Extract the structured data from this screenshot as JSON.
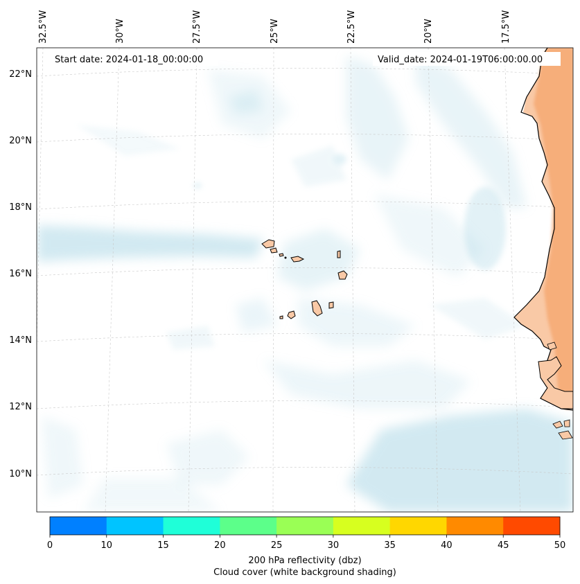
{
  "map": {
    "lon_labels": [
      "32.5°W",
      "30°W",
      "27.5°W",
      "25°W",
      "22.5°W",
      "20°W",
      "17.5°W"
    ],
    "lat_labels": [
      "22°N",
      "20°N",
      "18°N",
      "16°N",
      "14°N",
      "12°N",
      "10°N"
    ],
    "start_date": "Start date: 2024-01-18_00:00:00",
    "valid_date": "Valid_date: 2024-01-19T06:00:00.00"
  },
  "colorbar": {
    "ticks": [
      "0",
      "10",
      "15",
      "20",
      "25",
      "30",
      "35",
      "40",
      "45",
      "50"
    ],
    "colors": [
      "#0080ff",
      "#00c4ff",
      "#1fffd8",
      "#5cff8a",
      "#9aff55",
      "#d7ff1f",
      "#ffd700",
      "#ff8a00",
      "#ff4a00"
    ],
    "label_line1": "200 hPa reflectivity (dbz)",
    "label_line2": "Cloud cover (white background shading)"
  },
  "colors": {
    "land_fill": "#f9c9a6",
    "land_edge_orange": "#f5a56c",
    "cloud": "#add8e6",
    "coast": "#000000"
  }
}
